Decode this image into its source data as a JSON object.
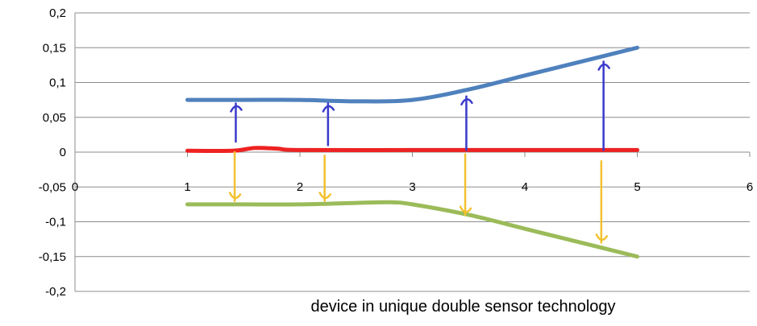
{
  "chart_data": {
    "type": "line",
    "caption": "device in unique double sensor technology",
    "xlim": [
      0,
      6
    ],
    "ylim": [
      -0.2,
      0.2
    ],
    "x_ticks": [
      "0",
      "1",
      "2",
      "3",
      "4",
      "5",
      "6"
    ],
    "y_ticks": [
      "0,2",
      "0,15",
      "0,1",
      "0,05",
      "0",
      "-0,05",
      "-0,1",
      "-0,15",
      "-0,2"
    ],
    "grid": true,
    "legend": "none",
    "series": [
      {
        "color": "#4f81bd",
        "x": [
          1,
          1.5,
          2,
          2.5,
          3,
          3.5,
          4,
          4.5,
          5
        ],
        "y": [
          0.075,
          0.075,
          0.075,
          0.073,
          0.075,
          0.09,
          0.11,
          0.13,
          0.15
        ]
      },
      {
        "color": "#ee2222",
        "x": [
          1,
          1.4,
          1.6,
          1.8,
          2,
          3,
          4,
          5
        ],
        "y": [
          0.002,
          0.002,
          0.006,
          0.005,
          0.003,
          0.003,
          0.003,
          0.003
        ]
      },
      {
        "color": "#9bbb59",
        "x": [
          1,
          1.5,
          2,
          2.5,
          2.8,
          3,
          3.5,
          4,
          4.5,
          5
        ],
        "y": [
          -0.075,
          -0.075,
          -0.075,
          -0.073,
          -0.072,
          -0.075,
          -0.09,
          -0.11,
          -0.13,
          -0.15
        ]
      }
    ],
    "annotations": {
      "up_arrows": {
        "color": "#3a3acc",
        "x": [
          1.43,
          2.25,
          3.48,
          4.7
        ],
        "y_from": [
          0.015,
          0.01,
          0.003,
          0.003
        ],
        "y_to": [
          0.07,
          0.07,
          0.08,
          0.13
        ]
      },
      "down_arrows": {
        "color": "#f2c12e",
        "x": [
          1.42,
          2.22,
          3.47,
          4.68
        ],
        "y_from": [
          0.0,
          -0.005,
          -0.003,
          -0.013
        ],
        "y_to": [
          -0.07,
          -0.07,
          -0.09,
          -0.13
        ]
      }
    }
  }
}
